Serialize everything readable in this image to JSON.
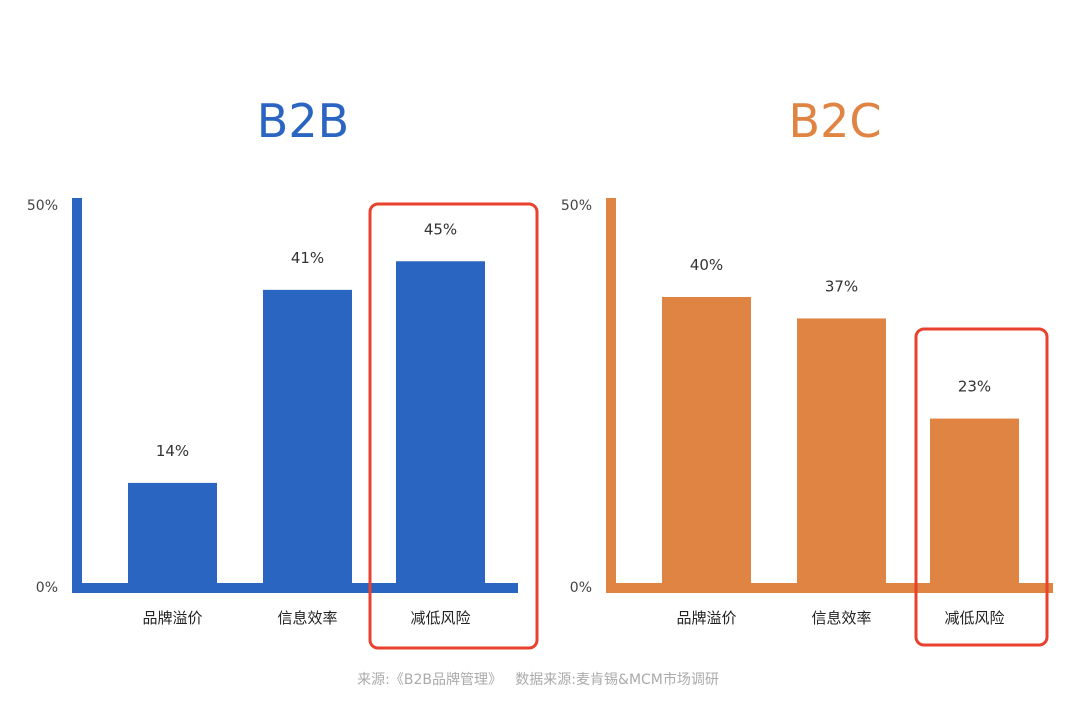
{
  "chart_data": [
    {
      "type": "bar",
      "title": "B2B",
      "categories": [
        "品牌溢价",
        "信息效率",
        "减低风险"
      ],
      "values": [
        14,
        41,
        45
      ],
      "data_labels": [
        "14%",
        "41%",
        "45%"
      ],
      "ylim": [
        0,
        50
      ],
      "yticks": [
        "0%",
        "50%"
      ],
      "color": "#2b65c2",
      "highlight_category": "减低风险",
      "highlight_color": "#e8412e",
      "grid": false
    },
    {
      "type": "bar",
      "title": "B2C",
      "categories": [
        "品牌溢价",
        "信息效率",
        "减低风险"
      ],
      "values": [
        40,
        37,
        23
      ],
      "data_labels": [
        "40%",
        "37%",
        "23%"
      ],
      "ylim": [
        0,
        50
      ],
      "yticks": [
        "0%",
        "50%"
      ],
      "color": "#e08443",
      "highlight_category": "减低风险",
      "highlight_color": "#e8412e",
      "grid": false
    }
  ],
  "source": "来源:《B2B品牌管理》   数据来源:麦肯锡&MCM市场调研"
}
